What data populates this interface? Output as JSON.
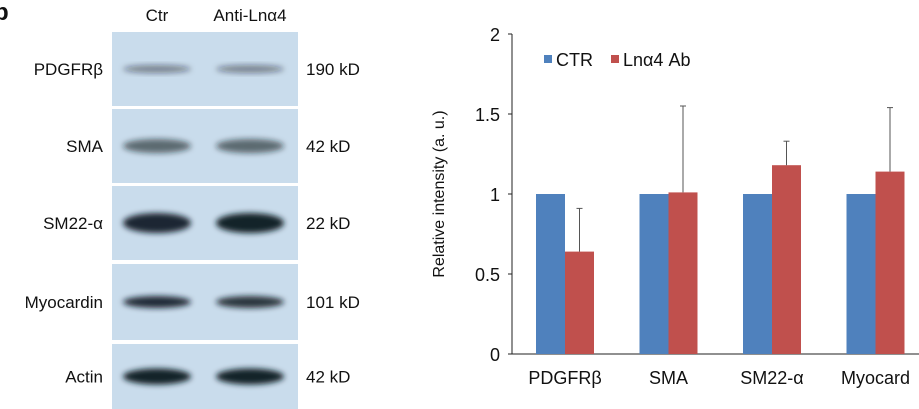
{
  "panel_letter": "b",
  "blot": {
    "lanes": [
      "Ctr",
      "Anti-Lnα4"
    ],
    "rows": [
      {
        "protein": "PDGFRβ",
        "size": "190 kD"
      },
      {
        "protein": "SMA",
        "size": "42 kD"
      },
      {
        "protein": "SM22-α",
        "size": "22 kD"
      },
      {
        "protein": "Myocardin",
        "size": "101 kD"
      },
      {
        "protein": "Actin",
        "size": "42 kD"
      }
    ],
    "background_color": "#c9dcec"
  },
  "chart_data": {
    "type": "bar",
    "categories": [
      "PDGFRβ",
      "SMA",
      "SM22-α",
      "Myocard"
    ],
    "series": [
      {
        "name": "CTR",
        "color": "#4f81bd",
        "values": [
          1,
          1,
          1,
          1
        ],
        "error": [
          0,
          0,
          0,
          0
        ]
      },
      {
        "name": "Lnα4 Ab",
        "color": "#c0504d",
        "values": [
          0.64,
          1.01,
          1.18,
          1.14
        ],
        "error": [
          0.27,
          0.54,
          0.15,
          0.4
        ]
      }
    ],
    "ylabel": "Relative intensity (a. u.)",
    "xlabel": "",
    "ylim": [
      0,
      2
    ],
    "yticks": [
      "0",
      "0.5",
      "1",
      "1.5",
      "2"
    ],
    "grid": false,
    "legend_position": "top-left"
  }
}
